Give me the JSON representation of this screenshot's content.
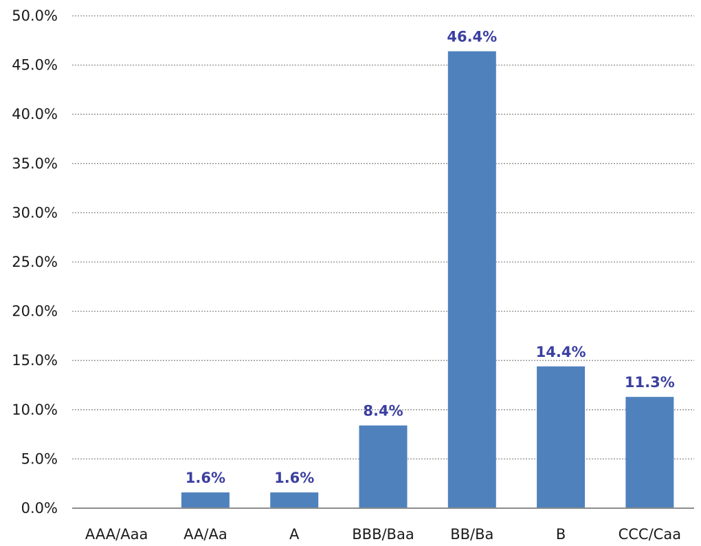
{
  "chart_data": {
    "type": "bar",
    "categories": [
      "AAA/Aaa",
      "AA/Aa",
      "A",
      "BBB/Baa",
      "BB/Ba",
      "B",
      "CCC/Caa"
    ],
    "values": [
      0,
      1.6,
      1.6,
      8.4,
      46.4,
      14.4,
      11.3
    ],
    "data_labels": [
      "",
      "1.6%",
      "1.6%",
      "8.4%",
      "46.4%",
      "14.4%",
      "11.3%"
    ],
    "y_ticks": [
      "0.0%",
      "5.0%",
      "10.0%",
      "15.0%",
      "20.0%",
      "25.0%",
      "30.0%",
      "35.0%",
      "40.0%",
      "45.0%",
      "50.0%"
    ],
    "ylim": [
      0,
      50
    ],
    "grid": true,
    "legend": "none",
    "colors": {
      "bar": "#4f81bd",
      "data_label": "#3b3fa0",
      "grid": "#8c8c8c",
      "axis": "#8c8c8c"
    }
  }
}
